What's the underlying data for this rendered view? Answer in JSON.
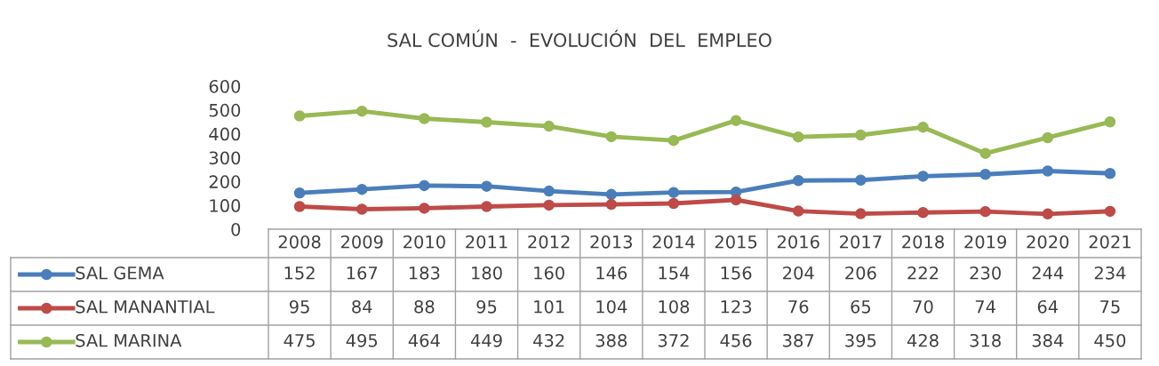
{
  "chart_data": {
    "type": "line",
    "title": "SAL COMÚN  -  EVOLUCIÓN  DEL  EMPLEO",
    "categories": [
      "2008",
      "2009",
      "2010",
      "2011",
      "2012",
      "2013",
      "2014",
      "2015",
      "2016",
      "2017",
      "2018",
      "2019",
      "2020",
      "2021"
    ],
    "series": [
      {
        "name": "SAL GEMA",
        "color": "#4a7ebb",
        "values": [
          152,
          167,
          183,
          180,
          160,
          146,
          154,
          156,
          204,
          206,
          222,
          230,
          244,
          234
        ]
      },
      {
        "name": "SAL MANANTIAL",
        "color": "#be4b48",
        "values": [
          95,
          84,
          88,
          95,
          101,
          104,
          108,
          123,
          76,
          65,
          70,
          74,
          64,
          75
        ]
      },
      {
        "name": "SAL MARINA",
        "color": "#98b954",
        "values": [
          475,
          495,
          464,
          449,
          432,
          388,
          372,
          456,
          387,
          395,
          428,
          318,
          384,
          450
        ]
      }
    ],
    "ylim": [
      0,
      600
    ],
    "yticks": [
      0,
      100,
      200,
      300,
      400,
      500,
      600
    ],
    "grid": false,
    "marker": "circle",
    "line_style": "solid",
    "data_labels": true,
    "legend": "bottom"
  }
}
